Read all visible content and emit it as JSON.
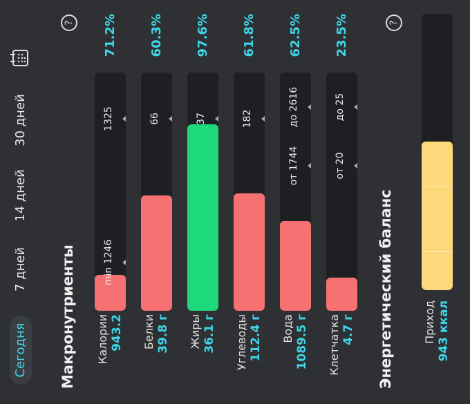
{
  "tabs": [
    "Сегодня",
    "7 дней",
    "14 дней",
    "30 дней"
  ],
  "macros": {
    "title": "Макронутриенты",
    "rows": [
      {
        "name": "Калории",
        "value": "943.2",
        "percent": "71.2%",
        "markers": [
          "min 1246",
          "1325"
        ]
      },
      {
        "name": "Белки",
        "value": "39.8 г",
        "percent": "60.3%",
        "markers": [
          "66"
        ]
      },
      {
        "name": "Жиры",
        "value": "36.1 г",
        "percent": "97.6%",
        "markers": [
          "37"
        ]
      },
      {
        "name": "Углеводы",
        "value": "112.4 г",
        "percent": "61.8%",
        "markers": [
          "182"
        ]
      },
      {
        "name": "Вода",
        "value": "1089.5 г",
        "percent": "62.5%",
        "markers": [
          "от 1744",
          "до 2616"
        ]
      },
      {
        "name": "Клетчатка",
        "value": "4.7 г",
        "percent": "23.5%",
        "markers": [
          "от 20",
          "до 25"
        ]
      }
    ]
  },
  "energy": {
    "title": "Энергетический баланс",
    "rows": [
      {
        "name": "Приход",
        "value": "943 ккал"
      }
    ]
  }
}
